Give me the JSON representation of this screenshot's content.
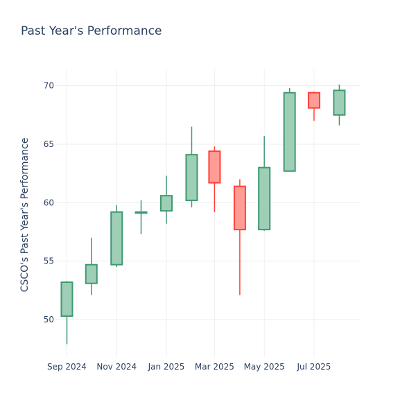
{
  "chart_data": {
    "type": "candlestick",
    "title": "Past Year's Performance",
    "xlabel": "",
    "ylabel": "CSCO's Past Year's Performance",
    "ylim": [
      46.8,
      71.4
    ],
    "yticks": [
      50,
      55,
      60,
      65,
      70
    ],
    "xlim": [
      "2024-08-18",
      "2025-08-27"
    ],
    "xticks": [
      {
        "date": "2024-09-01",
        "label": "Sep 2024"
      },
      {
        "date": "2024-11-01",
        "label": "Nov 2024"
      },
      {
        "date": "2025-01-01",
        "label": "Jan 2025"
      },
      {
        "date": "2025-03-01",
        "label": "Mar 2025"
      },
      {
        "date": "2025-05-01",
        "label": "May 2025"
      },
      {
        "date": "2025-07-01",
        "label": "Jul 2025"
      }
    ],
    "grid": true,
    "increasing_color": "#3d9970",
    "increasing_fill": "#9ecfb6",
    "decreasing_color": "#ff4136",
    "decreasing_fill": "#ff9c96",
    "candles": [
      {
        "date": "2024-09-01",
        "open": 50.3,
        "high": 53.3,
        "low": 47.9,
        "close": 53.2
      },
      {
        "date": "2024-10-01",
        "open": 53.1,
        "high": 57.0,
        "low": 52.1,
        "close": 54.7
      },
      {
        "date": "2024-11-01",
        "open": 54.7,
        "high": 59.8,
        "low": 54.5,
        "close": 59.2
      },
      {
        "date": "2024-12-01",
        "open": 59.2,
        "high": 60.2,
        "low": 57.3,
        "close": 59.2
      },
      {
        "date": "2025-01-01",
        "open": 59.3,
        "high": 62.3,
        "low": 58.2,
        "close": 60.6
      },
      {
        "date": "2025-02-01",
        "open": 60.2,
        "high": 66.5,
        "low": 59.6,
        "close": 64.1
      },
      {
        "date": "2025-03-01",
        "open": 64.4,
        "high": 64.8,
        "low": 59.2,
        "close": 61.7
      },
      {
        "date": "2025-04-01",
        "open": 61.4,
        "high": 62.0,
        "low": 52.1,
        "close": 57.7
      },
      {
        "date": "2025-05-01",
        "open": 57.7,
        "high": 65.7,
        "low": 57.6,
        "close": 63.0
      },
      {
        "date": "2025-06-01",
        "open": 62.7,
        "high": 69.8,
        "low": 62.7,
        "close": 69.4
      },
      {
        "date": "2025-07-01",
        "open": 69.4,
        "high": 69.5,
        "low": 67.0,
        "close": 68.1
      },
      {
        "date": "2025-08-01",
        "open": 67.5,
        "high": 70.1,
        "low": 66.6,
        "close": 69.6
      }
    ]
  }
}
